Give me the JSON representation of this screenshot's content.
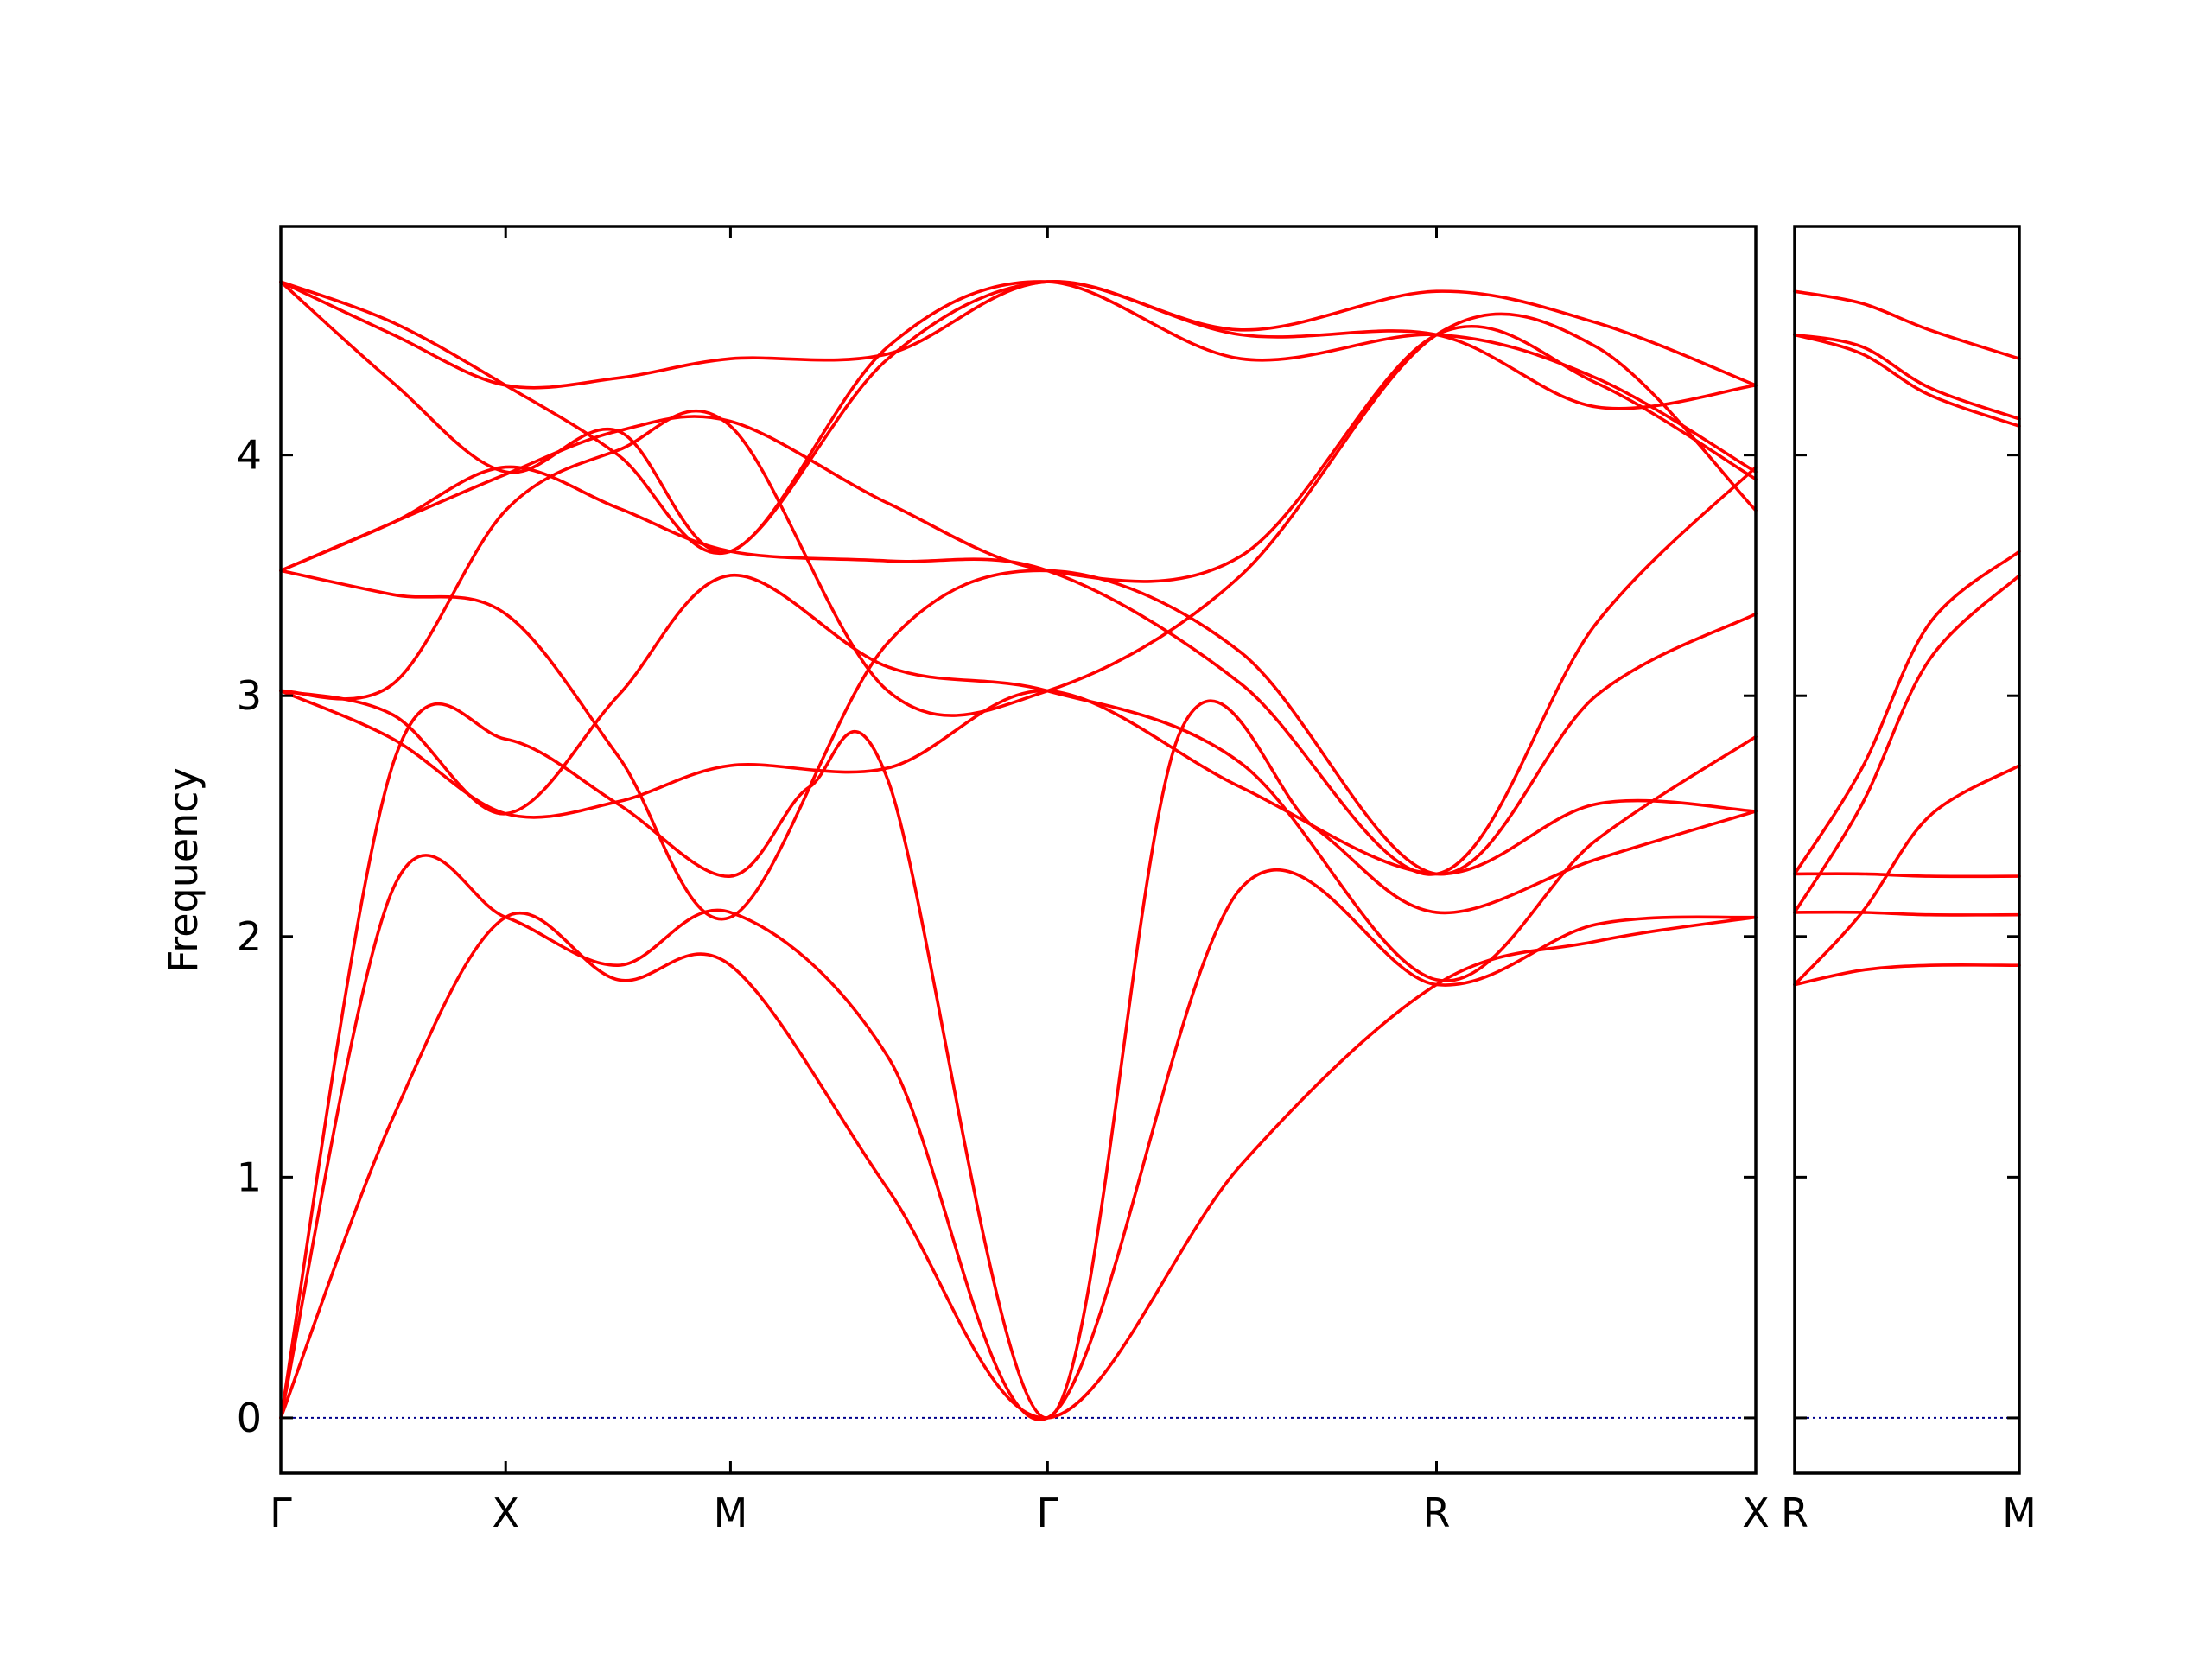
{
  "chart_data": {
    "type": "line",
    "ylabel": "Frequency",
    "ylim": [
      -0.23,
      4.95
    ],
    "yticks": [
      0,
      1,
      2,
      3,
      4
    ],
    "grid": false,
    "band_color": "#ff0000",
    "zero_line_color": "#00008b",
    "panels": [
      {
        "id": "main",
        "xlim": [
          0,
          6.56
        ],
        "labels": [
          {
            "x": 0,
            "text": "Γ"
          },
          {
            "x": 1,
            "text": "X"
          },
          {
            "x": 2,
            "text": "M"
          },
          {
            "x": 3.41,
            "text": "Γ"
          },
          {
            "x": 5.14,
            "text": "R"
          },
          {
            "x": 6.56,
            "text": "X"
          }
        ],
        "series": [
          {
            "x": [
              0,
              0.5,
              1,
              1.5,
              2,
              2.7,
              3.41,
              4.27,
              5.14,
              5.85,
              6.56
            ],
            "y": [
              0,
              1.25,
              2.08,
              1.82,
              1.88,
              0.95,
              0,
              1.05,
              1.8,
              1.98,
              2.08
            ]
          },
          {
            "x": [
              0,
              0.5,
              1,
              1.5,
              2,
              2.7,
              3.41,
              4.27,
              5.14,
              5.85,
              6.56
            ],
            "y": [
              0,
              2.2,
              2.08,
              1.88,
              2.1,
              1.5,
              0,
              2.2,
              1.8,
              2.05,
              2.08
            ]
          },
          {
            "x": [
              0,
              0.5,
              1,
              1.5,
              2,
              2.35,
              2.7,
              3.41,
              4.0,
              4.6,
              5.14,
              5.85,
              6.56
            ],
            "y": [
              0,
              2.72,
              2.82,
              2.55,
              2.25,
              2.62,
              2.65,
              0,
              2.85,
              2.45,
              2.1,
              2.32,
              2.52
            ]
          },
          {
            "x": [
              0,
              0.5,
              1,
              1.5,
              2,
              2.7,
              3.41,
              4.27,
              5.14,
              5.85,
              6.56
            ],
            "y": [
              3.02,
              2.82,
              2.51,
              2.56,
              2.71,
              2.7,
              3.02,
              2.62,
              2.26,
              2.55,
              2.52
            ]
          },
          {
            "x": [
              0,
              0.5,
              1,
              1.5,
              2,
              2.7,
              3.41,
              4.27,
              5.14,
              5.85,
              6.56
            ],
            "y": [
              3.02,
              2.92,
              2.51,
              3.0,
              3.5,
              3.12,
              3.02,
              2.72,
              1.82,
              2.4,
              2.83
            ]
          },
          {
            "x": [
              0,
              0.5,
              1,
              1.5,
              2,
              2.7,
              3.41,
              4.27,
              5.14,
              5.85,
              6.56
            ],
            "y": [
              3.52,
              3.42,
              3.34,
              2.75,
              2.08,
              3.22,
              3.52,
              3.18,
              2.26,
              3.0,
              3.34
            ]
          },
          {
            "x": [
              0,
              0.5,
              1,
              1.5,
              2,
              2.7,
              3.41,
              4.27,
              5.14,
              5.85,
              6.56
            ],
            "y": [
              3.02,
              3.05,
              3.77,
              4.02,
              4.12,
              3.02,
              3.02,
              3.5,
              4.5,
              4.45,
              3.77
            ]
          },
          {
            "x": [
              0,
              0.5,
              1,
              1.5,
              2,
              2.7,
              3.41,
              4.27,
              5.14,
              5.85,
              6.56
            ],
            "y": [
              3.52,
              3.72,
              3.92,
              4.1,
              4.14,
              3.8,
              3.52,
              3.58,
              4.5,
              4.3,
              3.9
            ]
          },
          {
            "x": [
              0,
              0.5,
              1,
              1.5,
              2,
              2.7,
              3.41,
              4.27,
              5.14,
              5.85,
              6.56
            ],
            "y": [
              3.52,
              3.72,
              3.95,
              3.78,
              3.6,
              3.56,
              3.52,
              3.05,
              2.26,
              3.3,
              3.95
            ]
          },
          {
            "x": [
              0,
              0.5,
              1,
              1.5,
              2,
              2.7,
              3.41,
              4.27,
              5.14,
              5.85,
              6.56
            ],
            "y": [
              4.72,
              4.3,
              3.93,
              4.1,
              3.6,
              4.45,
              4.72,
              4.4,
              4.5,
              4.32,
              3.93
            ]
          },
          {
            "x": [
              0,
              0.5,
              1,
              1.5,
              2,
              2.7,
              3.41,
              4.27,
              5.14,
              5.85,
              6.56
            ],
            "y": [
              4.72,
              4.55,
              4.29,
              4.0,
              3.6,
              4.4,
              4.72,
              4.52,
              4.68,
              4.55,
              4.29
            ]
          },
          {
            "x": [
              0,
              0.5,
              1,
              1.5,
              2,
              2.7,
              3.41,
              4.27,
              5.14,
              5.85,
              6.56
            ],
            "y": [
              4.72,
              4.5,
              4.29,
              4.32,
              4.4,
              4.42,
              4.72,
              4.5,
              4.5,
              4.2,
              4.29
            ]
          }
        ]
      },
      {
        "id": "right",
        "xlim": [
          0,
          1
        ],
        "labels": [
          {
            "x": 0,
            "text": "R"
          },
          {
            "x": 1,
            "text": "M"
          }
        ],
        "series": [
          {
            "x": [
              0,
              0.3,
              0.6,
              1
            ],
            "y": [
              1.8,
              1.86,
              1.88,
              1.88
            ]
          },
          {
            "x": [
              0,
              0.3,
              0.6,
              1
            ],
            "y": [
              2.1,
              2.1,
              2.09,
              2.09
            ]
          },
          {
            "x": [
              0,
              0.3,
              0.6,
              1
            ],
            "y": [
              2.26,
              2.26,
              2.25,
              2.25
            ]
          },
          {
            "x": [
              0,
              0.3,
              0.6,
              1
            ],
            "y": [
              1.8,
              2.1,
              2.5,
              2.71
            ]
          },
          {
            "x": [
              0,
              0.3,
              0.6,
              1
            ],
            "y": [
              2.1,
              2.55,
              3.15,
              3.5
            ]
          },
          {
            "x": [
              0,
              0.3,
              0.6,
              1
            ],
            "y": [
              2.26,
              2.7,
              3.3,
              3.6
            ]
          },
          {
            "x": [
              0,
              0.3,
              0.6,
              1
            ],
            "y": [
              4.5,
              4.42,
              4.25,
              4.12
            ]
          },
          {
            "x": [
              0,
              0.3,
              0.6,
              1
            ],
            "y": [
              4.5,
              4.45,
              4.28,
              4.15
            ]
          },
          {
            "x": [
              0,
              0.3,
              0.6,
              1
            ],
            "y": [
              4.68,
              4.63,
              4.52,
              4.4
            ]
          }
        ]
      }
    ]
  }
}
